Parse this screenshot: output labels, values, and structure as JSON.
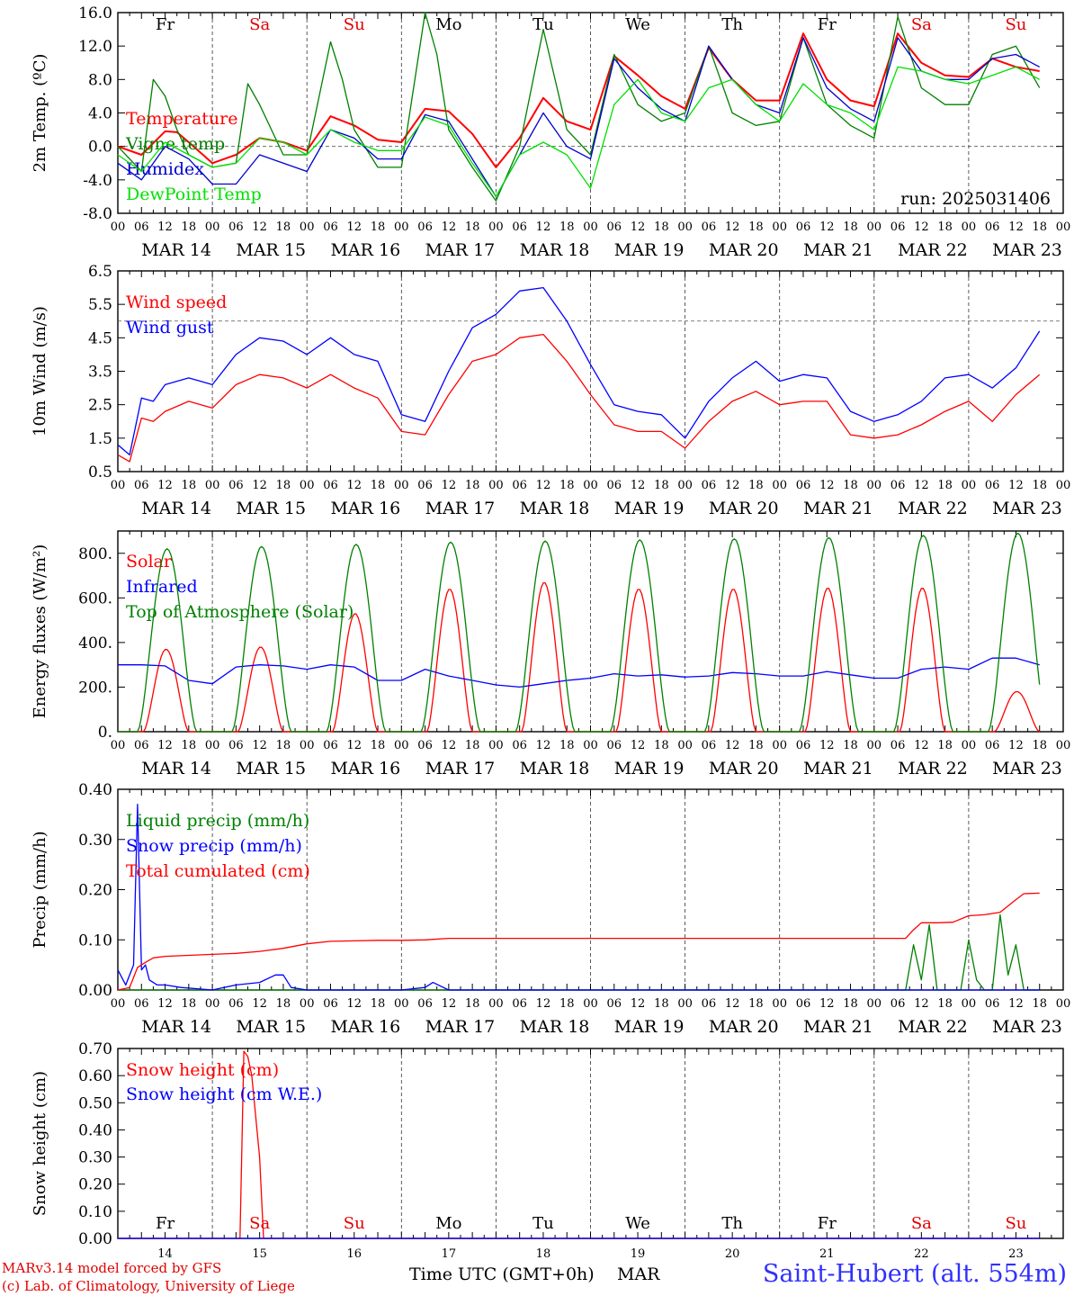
{
  "chart_data": [
    {
      "type": "line",
      "ylabel": "2m Temp. (ºC)",
      "ylim": [
        -8,
        16
      ],
      "yticks": [
        -8,
        -4,
        0,
        4,
        8,
        12,
        16
      ],
      "ytick_labels": [
        "-8.0",
        "-4.0",
        "0.0",
        "4.0",
        "8.0",
        "12.0",
        "16.0"
      ],
      "dashed_y": [
        0
      ],
      "annotation": "run: 2025031406",
      "weekday_labels": [
        "Fr",
        "Sa",
        "Su",
        "Mo",
        "Tu",
        "We",
        "Th",
        "Fr",
        "Sa",
        "Su"
      ],
      "date_labels": [
        "MAR 14",
        "MAR 15",
        "MAR 16",
        "MAR 17",
        "MAR 18",
        "MAR 19",
        "MAR 20",
        "MAR 21",
        "MAR 22",
        "MAR 23"
      ],
      "hour_ticks": [
        "00",
        "06",
        "12",
        "18"
      ],
      "x_unit": "hours since 00 UTC Mar 14",
      "series": [
        {
          "name": "Temperature",
          "color": "#ff0000",
          "x": [
            0,
            6,
            12,
            15,
            18,
            24,
            30,
            36,
            42,
            48,
            54,
            60,
            66,
            72,
            78,
            84,
            90,
            96,
            102,
            108,
            114,
            120,
            126,
            132,
            138,
            144,
            150,
            156,
            162,
            168,
            174,
            180,
            186,
            192,
            198,
            204,
            210,
            216,
            222,
            228,
            234
          ],
          "values": [
            0,
            -1,
            1.8,
            1.7,
            0.5,
            -2.0,
            -1.0,
            1.0,
            0.5,
            -0.5,
            3.6,
            2.5,
            0.8,
            0.5,
            4.5,
            4.2,
            1.5,
            -2.5,
            1.0,
            5.8,
            3.0,
            2.0,
            10.8,
            8.5,
            6.0,
            4.5,
            11.8,
            8.0,
            5.5,
            5.5,
            13.5,
            8.0,
            5.5,
            4.8,
            13.5,
            10.0,
            8.5,
            8.3,
            10.5,
            9.5,
            9.0
          ]
        },
        {
          "name": "Vigne temp",
          "color": "#008000",
          "x": [
            0,
            6,
            9,
            12,
            15,
            18,
            24,
            30,
            33,
            36,
            42,
            48,
            54,
            57,
            60,
            66,
            72,
            78,
            81,
            84,
            90,
            96,
            102,
            108,
            114,
            120,
            126,
            132,
            138,
            144,
            150,
            156,
            162,
            168,
            174,
            180,
            186,
            192,
            198,
            204,
            210,
            216,
            222,
            228,
            234
          ],
          "values": [
            0,
            -3,
            8,
            6,
            2,
            -1,
            -2.5,
            -2,
            7.5,
            5,
            -1,
            -1,
            12.5,
            8,
            2,
            -2.5,
            -2.5,
            16,
            11,
            2,
            -2.5,
            -6.5,
            0,
            14,
            2,
            -1,
            11,
            5,
            3,
            4,
            12,
            4,
            2.5,
            3,
            13,
            5,
            2.5,
            1,
            15.5,
            7,
            5,
            5,
            11,
            12,
            7
          ]
        },
        {
          "name": "Humidex",
          "color": "#0000cc",
          "x": [
            0,
            6,
            12,
            18,
            24,
            30,
            36,
            42,
            48,
            54,
            60,
            66,
            72,
            78,
            84,
            90,
            96,
            102,
            108,
            114,
            120,
            126,
            132,
            138,
            144,
            150,
            156,
            162,
            168,
            174,
            180,
            186,
            192,
            198,
            204,
            210,
            216,
            222,
            228,
            234
          ],
          "values": [
            -2,
            -4,
            0,
            -1.5,
            -4.5,
            -4.5,
            -1,
            -2,
            -3,
            2,
            1,
            -1.5,
            -1.5,
            3.8,
            3,
            -1.5,
            -6,
            -1,
            4,
            0,
            -1.5,
            10.5,
            7,
            4.5,
            3,
            12,
            8,
            5,
            4,
            13,
            7,
            4.5,
            3,
            13,
            9,
            8,
            8,
            10.5,
            11,
            9.5
          ]
        },
        {
          "name": "DewPoint Temp",
          "color": "#00e000",
          "x": [
            0,
            6,
            12,
            18,
            24,
            30,
            36,
            42,
            48,
            54,
            60,
            66,
            72,
            78,
            84,
            90,
            96,
            102,
            108,
            114,
            120,
            126,
            132,
            138,
            144,
            150,
            156,
            162,
            168,
            174,
            180,
            186,
            192,
            198,
            204,
            210,
            216,
            222,
            228,
            234
          ],
          "values": [
            -1,
            -3,
            0.5,
            -1,
            -2.5,
            -2,
            1,
            0.5,
            -1,
            2,
            0.5,
            -0.5,
            -0.5,
            3.5,
            2.5,
            -2,
            -6,
            -1,
            0.5,
            -1,
            -5,
            5,
            8,
            4,
            3,
            7,
            8,
            5,
            3,
            7.5,
            5,
            4,
            2,
            9.5,
            9,
            8,
            7.5,
            8.5,
            9.5,
            8
          ]
        }
      ]
    },
    {
      "type": "line",
      "ylabel": "10m Wind (m/s)",
      "ylim": [
        0.5,
        6.5
      ],
      "yticks": [
        0.5,
        1.5,
        2.5,
        3.5,
        4.5,
        5.5,
        6.5
      ],
      "ytick_labels": [
        "0.5",
        "1.5",
        "2.5",
        "3.5",
        "4.5",
        "5.5",
        "6.5"
      ],
      "dashed_y": [
        5.0
      ],
      "date_labels": [
        "MAR 14",
        "MAR 15",
        "MAR 16",
        "MAR 17",
        "MAR 18",
        "MAR 19",
        "MAR 20",
        "MAR 21",
        "MAR 22",
        "MAR 23"
      ],
      "hour_ticks": [
        "00",
        "06",
        "12",
        "18"
      ],
      "series": [
        {
          "name": "Wind speed",
          "color": "#ff0000",
          "x": [
            0,
            3,
            6,
            9,
            12,
            18,
            24,
            30,
            36,
            42,
            48,
            54,
            60,
            66,
            72,
            78,
            84,
            90,
            96,
            102,
            108,
            114,
            120,
            126,
            132,
            138,
            144,
            150,
            156,
            162,
            168,
            174,
            180,
            186,
            192,
            198,
            204,
            210,
            216,
            222,
            228,
            234
          ],
          "values": [
            1.0,
            0.8,
            2.1,
            2.0,
            2.3,
            2.6,
            2.4,
            3.1,
            3.4,
            3.3,
            3.0,
            3.4,
            3.0,
            2.7,
            1.7,
            1.6,
            2.8,
            3.8,
            4.0,
            4.5,
            4.6,
            3.8,
            2.8,
            1.9,
            1.7,
            1.7,
            1.2,
            2.0,
            2.6,
            2.9,
            2.5,
            2.6,
            2.6,
            1.6,
            1.5,
            1.6,
            1.9,
            2.3,
            2.6,
            2.0,
            2.8,
            3.4
          ]
        },
        {
          "name": "Wind gust",
          "color": "#0000ff",
          "x": [
            0,
            3,
            6,
            9,
            12,
            18,
            24,
            30,
            36,
            42,
            48,
            54,
            60,
            66,
            72,
            78,
            84,
            90,
            96,
            102,
            108,
            114,
            120,
            126,
            132,
            138,
            144,
            150,
            156,
            162,
            168,
            174,
            180,
            186,
            192,
            198,
            204,
            210,
            216,
            222,
            228,
            234
          ],
          "values": [
            1.3,
            1.0,
            2.7,
            2.6,
            3.1,
            3.3,
            3.1,
            4.0,
            4.5,
            4.4,
            4.0,
            4.5,
            4.0,
            3.8,
            2.2,
            2.0,
            3.5,
            4.8,
            5.2,
            5.9,
            6.0,
            5.0,
            3.7,
            2.5,
            2.3,
            2.2,
            1.5,
            2.6,
            3.3,
            3.8,
            3.2,
            3.4,
            3.3,
            2.3,
            2.0,
            2.2,
            2.6,
            3.3,
            3.4,
            3.0,
            3.6,
            4.7
          ]
        }
      ]
    },
    {
      "type": "line",
      "ylabel": "Energy fluxes (W/m²)",
      "ylim": [
        0,
        900
      ],
      "yticks": [
        0,
        200,
        400,
        600,
        800
      ],
      "ytick_labels": [
        "0.",
        "200.",
        "400.",
        "600.",
        "800."
      ],
      "date_labels": [
        "MAR 14",
        "MAR 15",
        "MAR 16",
        "MAR 17",
        "MAR 18",
        "MAR 19",
        "MAR 20",
        "MAR 21",
        "MAR 22",
        "MAR 23"
      ],
      "hour_ticks": [
        "00",
        "06",
        "12",
        "18"
      ],
      "series": [
        {
          "name": "Solar",
          "color": "#ff0000",
          "peaks": [
            370,
            380,
            530,
            640,
            670,
            640,
            640,
            645,
            645,
            180
          ]
        },
        {
          "name": "Infrared",
          "color": "#0000ff",
          "x": [
            0,
            6,
            12,
            18,
            24,
            30,
            36,
            42,
            48,
            54,
            60,
            66,
            72,
            78,
            84,
            90,
            96,
            102,
            108,
            114,
            120,
            126,
            132,
            138,
            144,
            150,
            156,
            162,
            168,
            174,
            180,
            186,
            192,
            198,
            204,
            210,
            216,
            222,
            228,
            234
          ],
          "values": [
            300,
            300,
            295,
            230,
            215,
            290,
            300,
            295,
            280,
            300,
            290,
            230,
            230,
            280,
            250,
            230,
            210,
            200,
            215,
            230,
            240,
            260,
            250,
            255,
            245,
            250,
            265,
            260,
            250,
            250,
            270,
            255,
            240,
            240,
            280,
            290,
            280,
            330,
            330,
            300
          ]
        },
        {
          "name": "Top of Atmosphere (Solar)",
          "color": "#008000",
          "peaks": [
            820,
            830,
            840,
            850,
            855,
            860,
            865,
            870,
            880,
            890
          ]
        }
      ]
    },
    {
      "type": "line",
      "ylabel": "Precip (mm/h)",
      "ylim": [
        0,
        0.4
      ],
      "yticks": [
        0,
        0.1,
        0.2,
        0.3,
        0.4
      ],
      "ytick_labels": [
        "0.00",
        "0.10",
        "0.20",
        "0.30",
        "0.40"
      ],
      "date_labels": [
        "MAR 14",
        "MAR 15",
        "MAR 16",
        "MAR 17",
        "MAR 18",
        "MAR 19",
        "MAR 20",
        "MAR 21",
        "MAR 22",
        "MAR 23"
      ],
      "hour_ticks": [
        "00",
        "06",
        "12",
        "18"
      ],
      "series": [
        {
          "name": "Liquid precip (mm/h)",
          "color": "#008000",
          "x": [
            0,
            200,
            202,
            204,
            206,
            208,
            210,
            214,
            216,
            218,
            220,
            222,
            224,
            226,
            228,
            230,
            232,
            234
          ],
          "values": [
            0,
            0,
            0.09,
            0.02,
            0.13,
            0,
            0,
            0,
            0.1,
            0.02,
            0,
            0,
            0.15,
            0.03,
            0.09,
            0,
            0,
            0
          ]
        },
        {
          "name": "Snow precip (mm/h)",
          "color": "#0000ff",
          "x": [
            0,
            2,
            4,
            5,
            6,
            7,
            8,
            10,
            12,
            16,
            24,
            30,
            36,
            40,
            42,
            44,
            48,
            60,
            72,
            78,
            80,
            84,
            96,
            234
          ],
          "values": [
            0.04,
            0.01,
            0.05,
            0.37,
            0.04,
            0.05,
            0.02,
            0.01,
            0.01,
            0.005,
            0.0,
            0.01,
            0.015,
            0.03,
            0.03,
            0.005,
            0.0,
            0.0,
            0.0,
            0.005,
            0.015,
            0.0,
            0.0,
            0.0
          ]
        },
        {
          "name": "Total cumulated (cm)",
          "color": "#ff0000",
          "x": [
            0,
            3,
            5,
            7,
            9,
            12,
            18,
            24,
            30,
            36,
            42,
            48,
            54,
            60,
            66,
            72,
            78,
            84,
            90,
            96,
            150,
            200,
            202,
            204,
            208,
            212,
            216,
            220,
            224,
            228,
            230,
            234
          ],
          "values": [
            0,
            0.005,
            0.045,
            0.055,
            0.064,
            0.067,
            0.069,
            0.071,
            0.073,
            0.077,
            0.083,
            0.092,
            0.097,
            0.098,
            0.099,
            0.099,
            0.1,
            0.103,
            0.103,
            0.103,
            0.103,
            0.103,
            0.12,
            0.134,
            0.134,
            0.135,
            0.148,
            0.15,
            0.155,
            0.18,
            0.192,
            0.193
          ]
        }
      ]
    },
    {
      "type": "line",
      "ylabel": "Snow height (cm)",
      "ylim": [
        0,
        0.7
      ],
      "yticks": [
        0,
        0.1,
        0.2,
        0.3,
        0.4,
        0.5,
        0.6,
        0.7
      ],
      "ytick_labels": [
        "0.00",
        "0.10",
        "0.20",
        "0.30",
        "0.40",
        "0.50",
        "0.60",
        "0.70"
      ],
      "weekday_labels": [
        "Fr",
        "Sa",
        "Su",
        "Mo",
        "Tu",
        "We",
        "Th",
        "Fr",
        "Sa",
        "Su"
      ],
      "day_numbers": [
        "14",
        "15",
        "16",
        "17",
        "18",
        "19",
        "20",
        "21",
        "22",
        "23"
      ],
      "series": [
        {
          "name": "Snow height (cm)",
          "color": "#ff0000",
          "x": [
            0,
            31,
            32,
            33,
            34,
            36,
            37,
            234
          ],
          "values": [
            0,
            0,
            0.69,
            0.67,
            0.6,
            0.3,
            0,
            0
          ]
        },
        {
          "name": "Snow height (cm W.E.)",
          "color": "#0000ff",
          "x": [
            0,
            234
          ],
          "values": [
            0,
            0
          ]
        }
      ]
    }
  ],
  "footer": {
    "credit_line1": "MARv3.14 model forced by GFS",
    "credit_line2": "(c) Lab. of Climatology, University of Liege",
    "x_title": "Time UTC (GMT+0h)",
    "month": "MAR",
    "station": "Saint-Hubert (alt. 554m)"
  },
  "colors": {
    "weekday": "#000000",
    "weekend": "#e00000",
    "footer_credit": "#e00000",
    "station": "#3030ff"
  }
}
